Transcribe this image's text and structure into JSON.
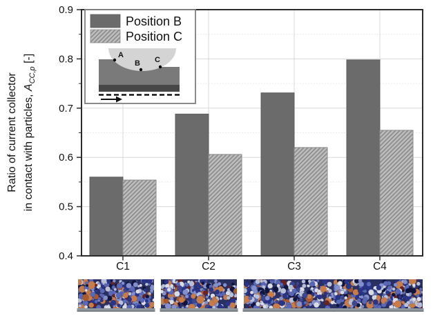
{
  "chart_data": {
    "type": "bar",
    "title": "",
    "categories": [
      "C1",
      "C2",
      "C3",
      "C4"
    ],
    "series": [
      {
        "name": "Position B",
        "pattern": "solid",
        "color": "#6b6b6b",
        "edge_color": "#5e5e5e",
        "values": [
          0.56,
          0.688,
          0.731,
          0.798
        ]
      },
      {
        "name": "Position C",
        "pattern": "diagonal-hatch",
        "color": "#bdbdbd",
        "hatch_color": "#8a8a8a",
        "values": [
          0.554,
          0.606,
          0.62,
          0.655
        ]
      }
    ],
    "ylabel": {
      "line1": "Ratio of current collector",
      "line2_prefix": "in contact with particles, ",
      "symbol": "A",
      "symbol_subscript": "CC,p",
      "suffix": " [-]"
    },
    "xlabel": "",
    "ylim": [
      0.4,
      0.9
    ],
    "yticks": [
      0.4,
      0.5,
      0.6,
      0.7,
      0.8,
      0.9
    ],
    "ytick_labels": [
      "0.4",
      "0.5",
      "0.6",
      "0.7",
      "0.8",
      "0.9"
    ],
    "minor_tick_step": 0.05,
    "grid": true,
    "legend_position": "top-left-inset"
  },
  "axes": {
    "frame_color": "#2b2b2b",
    "grid_color": "#d8d8d8",
    "minor_grid_color": "#e2e2e2",
    "tick_color": "#2b2b2b",
    "text_color": "#111111"
  },
  "inset": {
    "roller_color": "#d4d4d4",
    "coating_color": "#7a7a7a",
    "collector_color": "#474747",
    "box_border_color": "#7d7d7d",
    "points": [
      {
        "label": "A"
      },
      {
        "label": "B"
      },
      {
        "label": "C"
      }
    ]
  },
  "particle_strips": {
    "count": 4,
    "background_color": "#2a3060",
    "collector_color": "#8f969c",
    "collector_shadow": "#67696d",
    "palette": [
      {
        "color": "#10153d",
        "weight": 8
      },
      {
        "color": "#2a358a",
        "weight": 16
      },
      {
        "color": "#5a68b8",
        "weight": 20
      },
      {
        "color": "#8490cc",
        "weight": 12
      },
      {
        "color": "#b9c0d8",
        "weight": 12
      },
      {
        "color": "#d9dce4",
        "weight": 14
      },
      {
        "color": "#c87c48",
        "weight": 9
      },
      {
        "color": "#a85a2e",
        "weight": 3
      },
      {
        "color": "#6a2323",
        "weight": 3
      },
      {
        "color": "#3d478f",
        "weight": 3
      }
    ]
  }
}
